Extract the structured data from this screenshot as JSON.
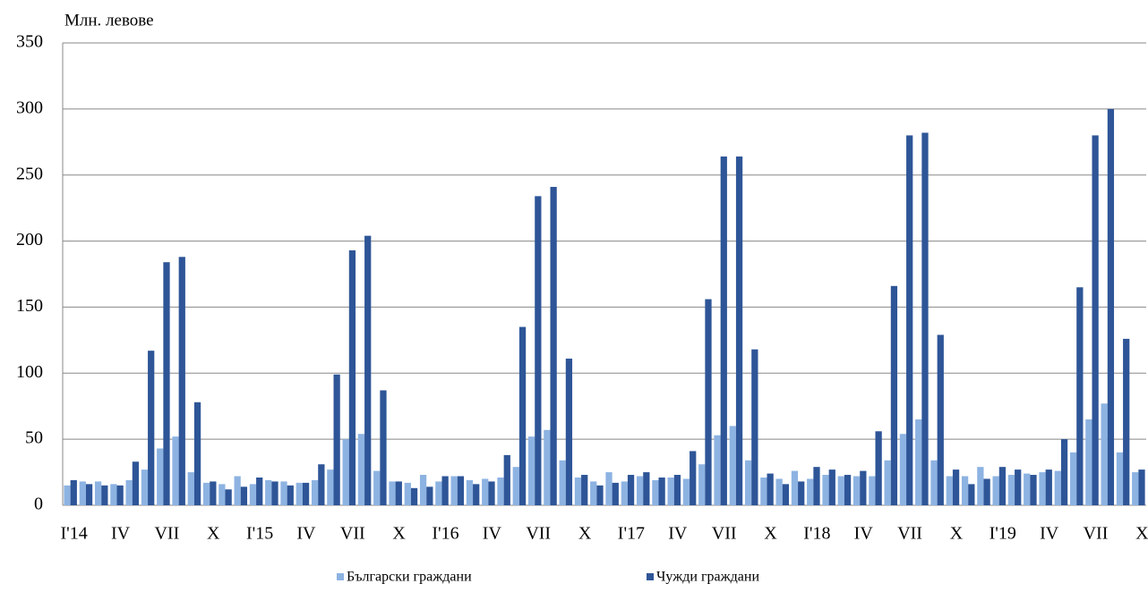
{
  "chart_data": {
    "type": "bar",
    "y_label": "Млн. левове",
    "categories": [
      "I'14",
      null,
      null,
      "IV",
      null,
      null,
      "VII",
      null,
      null,
      "X",
      null,
      null,
      "I'15",
      null,
      null,
      "IV",
      null,
      null,
      "VII",
      null,
      null,
      "X",
      null,
      null,
      "I'16",
      null,
      null,
      "IV",
      null,
      null,
      "VII",
      null,
      null,
      "X",
      null,
      null,
      "I'17",
      null,
      null,
      "IV",
      null,
      null,
      "VII",
      null,
      null,
      "X",
      null,
      null,
      "I'18",
      null,
      null,
      "IV",
      null,
      null,
      "VII",
      null,
      null,
      "X",
      null,
      null,
      "I'19",
      null,
      null,
      "IV",
      null,
      null,
      "VII",
      null,
      null,
      "X"
    ],
    "series": [
      {
        "name": "Български граждани",
        "color": "#8db3e2",
        "values": [
          15,
          18,
          18,
          16,
          19,
          27,
          43,
          52,
          25,
          17,
          16,
          22,
          16,
          19,
          18,
          17,
          19,
          27,
          50,
          54,
          26,
          18,
          17,
          23,
          18,
          22,
          19,
          20,
          21,
          29,
          52,
          57,
          34,
          21,
          18,
          25,
          18,
          22,
          19,
          21,
          20,
          31,
          53,
          60,
          34,
          21,
          20,
          26,
          20,
          23,
          22,
          22,
          22,
          34,
          54,
          65,
          34,
          22,
          22,
          29,
          22,
          23,
          24,
          25,
          26,
          40,
          65,
          77,
          40,
          25
        ]
      },
      {
        "name": "Чужди граждани",
        "color": "#2e5597",
        "values": [
          19,
          16,
          15,
          15,
          33,
          117,
          184,
          188,
          78,
          18,
          12,
          14,
          21,
          18,
          15,
          17,
          31,
          99,
          193,
          204,
          87,
          18,
          13,
          14,
          22,
          22,
          16,
          18,
          38,
          135,
          234,
          241,
          111,
          23,
          15,
          17,
          23,
          25,
          21,
          23,
          41,
          156,
          264,
          264,
          118,
          24,
          16,
          18,
          29,
          27,
          23,
          26,
          56,
          166,
          280,
          282,
          129,
          27,
          16,
          20,
          29,
          27,
          23,
          27,
          50,
          165,
          280,
          300,
          126,
          27
        ]
      }
    ],
    "ylim": [
      0,
      350
    ],
    "yticks": [
      0,
      50,
      100,
      150,
      200,
      250,
      300,
      350
    ],
    "grid": true,
    "legend": "bottom"
  }
}
